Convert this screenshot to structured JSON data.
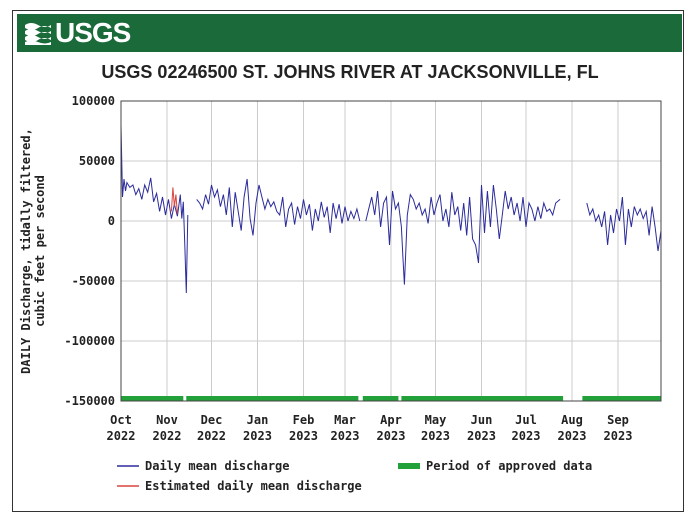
{
  "header": {
    "logo_text": "USGS",
    "banner_color": "#1b6a3a"
  },
  "chart_data": {
    "type": "line",
    "title": "USGS 02246500 ST. JOHNS RIVER AT JACKSONVILLE, FL",
    "ylabel_line1": "DAILY Discharge, tidally filtered,",
    "ylabel_line2": "cubic feet per second",
    "ylim": [
      -150000,
      100000
    ],
    "xlim": [
      "2022-10-01",
      "2023-09-30"
    ],
    "y_ticks": [
      {
        "value": 100000,
        "label": "100000"
      },
      {
        "value": 50000,
        "label": "50000"
      },
      {
        "value": 0,
        "label": "0"
      },
      {
        "value": -50000,
        "label": "-50000"
      },
      {
        "value": -100000,
        "label": "-100000"
      },
      {
        "value": -150000,
        "label": "-150000"
      }
    ],
    "x_ticks": [
      {
        "date": "2022-10-01",
        "month": "Oct",
        "year": "2022"
      },
      {
        "date": "2022-11-01",
        "month": "Nov",
        "year": "2022"
      },
      {
        "date": "2022-12-01",
        "month": "Dec",
        "year": "2022"
      },
      {
        "date": "2023-01-01",
        "month": "Jan",
        "year": "2023"
      },
      {
        "date": "2023-02-01",
        "month": "Feb",
        "year": "2023"
      },
      {
        "date": "2023-03-01",
        "month": "Mar",
        "year": "2023"
      },
      {
        "date": "2023-04-01",
        "month": "Apr",
        "year": "2023"
      },
      {
        "date": "2023-05-01",
        "month": "May",
        "year": "2023"
      },
      {
        "date": "2023-06-01",
        "month": "Jun",
        "year": "2023"
      },
      {
        "date": "2023-07-01",
        "month": "Jul",
        "year": "2023"
      },
      {
        "date": "2023-08-01",
        "month": "Aug",
        "year": "2023"
      },
      {
        "date": "2023-09-01",
        "month": "Sep",
        "year": "2023"
      }
    ],
    "grid": true,
    "colors": {
      "daily": "#2b2b9c",
      "estimated": "#d9453f",
      "approved": "#22a03a",
      "grid": "#cccccc"
    },
    "legend": {
      "placement": "bottom",
      "items": [
        {
          "key": "daily",
          "label": "Daily mean discharge"
        },
        {
          "key": "estimated",
          "label": "Estimated daily mean discharge"
        },
        {
          "key": "approved",
          "label": "Period of approved data"
        }
      ]
    },
    "series": [
      {
        "key": "daily",
        "segments": [
          [
            [
              "2022-10-01",
              80000
            ],
            [
              "2022-10-02",
              20000
            ],
            [
              "2022-10-03",
              35000
            ],
            [
              "2022-10-04",
              25000
            ],
            [
              "2022-10-05",
              32000
            ],
            [
              "2022-10-07",
              28000
            ],
            [
              "2022-10-09",
              30000
            ],
            [
              "2022-10-11",
              22000
            ],
            [
              "2022-10-13",
              27000
            ],
            [
              "2022-10-15",
              18000
            ],
            [
              "2022-10-17",
              30000
            ],
            [
              "2022-10-19",
              24000
            ],
            [
              "2022-10-21",
              36000
            ],
            [
              "2022-10-23",
              16000
            ],
            [
              "2022-10-25",
              23000
            ],
            [
              "2022-10-27",
              8000
            ],
            [
              "2022-10-29",
              20000
            ],
            [
              "2022-10-31",
              5000
            ],
            [
              "2022-11-02",
              18000
            ],
            [
              "2022-11-04",
              2000
            ],
            [
              "2022-11-06",
              14000
            ],
            [
              "2022-11-08",
              4000
            ],
            [
              "2022-11-10",
              22000
            ],
            [
              "2022-11-11",
              2000
            ],
            [
              "2022-11-12",
              16000
            ],
            [
              "2022-11-13",
              -20000
            ],
            [
              "2022-11-14",
              -60000
            ],
            [
              "2022-11-15",
              5000
            ]
          ],
          [
            [
              "2022-11-21",
              18000
            ],
            [
              "2022-11-23",
              15000
            ],
            [
              "2022-11-25",
              10000
            ],
            [
              "2022-11-27",
              22000
            ],
            [
              "2022-11-29",
              14000
            ],
            [
              "2022-12-01",
              30000
            ],
            [
              "2022-12-03",
              20000
            ],
            [
              "2022-12-05",
              26000
            ],
            [
              "2022-12-07",
              12000
            ],
            [
              "2022-12-09",
              22000
            ],
            [
              "2022-12-11",
              5000
            ],
            [
              "2022-12-13",
              28000
            ],
            [
              "2022-12-15",
              -5000
            ],
            [
              "2022-12-17",
              24000
            ],
            [
              "2022-12-19",
              8000
            ],
            [
              "2022-12-21",
              -8000
            ],
            [
              "2022-12-23",
              20000
            ],
            [
              "2022-12-25",
              35000
            ],
            [
              "2022-12-27",
              2000
            ],
            [
              "2022-12-29",
              -12000
            ],
            [
              "2022-12-31",
              15000
            ],
            [
              "2023-01-02",
              30000
            ],
            [
              "2023-01-04",
              20000
            ],
            [
              "2023-01-06",
              10000
            ],
            [
              "2023-01-08",
              18000
            ],
            [
              "2023-01-10",
              12000
            ],
            [
              "2023-01-12",
              16000
            ],
            [
              "2023-01-14",
              8000
            ],
            [
              "2023-01-16",
              5000
            ],
            [
              "2023-01-18",
              20000
            ],
            [
              "2023-01-20",
              -5000
            ],
            [
              "2023-01-22",
              10000
            ],
            [
              "2023-01-24",
              15000
            ],
            [
              "2023-01-26",
              -3000
            ],
            [
              "2023-01-28",
              12000
            ],
            [
              "2023-01-30",
              2000
            ],
            [
              "2023-02-01",
              18000
            ],
            [
              "2023-02-03",
              5000
            ],
            [
              "2023-02-05",
              14000
            ],
            [
              "2023-02-07",
              -8000
            ],
            [
              "2023-02-09",
              10000
            ],
            [
              "2023-02-11",
              0
            ],
            [
              "2023-02-13",
              16000
            ],
            [
              "2023-02-15",
              3000
            ],
            [
              "2023-02-17",
              12000
            ],
            [
              "2023-02-19",
              -10000
            ],
            [
              "2023-02-21",
              15000
            ],
            [
              "2023-02-23",
              2000
            ],
            [
              "2023-02-25",
              14000
            ],
            [
              "2023-02-27",
              -2000
            ],
            [
              "2023-03-01",
              12000
            ],
            [
              "2023-03-03",
              0
            ],
            [
              "2023-03-05",
              8000
            ],
            [
              "2023-03-07",
              2000
            ],
            [
              "2023-03-09",
              10000
            ],
            [
              "2023-03-11",
              0
            ]
          ],
          [
            [
              "2023-03-15",
              0
            ],
            [
              "2023-03-17",
              10000
            ],
            [
              "2023-03-19",
              20000
            ],
            [
              "2023-03-21",
              5000
            ],
            [
              "2023-03-23",
              25000
            ],
            [
              "2023-03-25",
              -5000
            ],
            [
              "2023-03-27",
              15000
            ],
            [
              "2023-03-29",
              20000
            ],
            [
              "2023-03-31",
              -20000
            ],
            [
              "2023-04-02",
              25000
            ],
            [
              "2023-04-04",
              10000
            ],
            [
              "2023-04-06",
              15000
            ],
            [
              "2023-04-08",
              -5000
            ],
            [
              "2023-04-09",
              -30000
            ],
            [
              "2023-04-10",
              -53000
            ],
            [
              "2023-04-12",
              5000
            ],
            [
              "2023-04-14",
              22000
            ],
            [
              "2023-04-16",
              18000
            ],
            [
              "2023-04-18",
              10000
            ],
            [
              "2023-04-20",
              15000
            ],
            [
              "2023-04-22",
              5000
            ],
            [
              "2023-04-24",
              10000
            ],
            [
              "2023-04-26",
              -2000
            ],
            [
              "2023-04-28",
              20000
            ],
            [
              "2023-04-30",
              5000
            ],
            [
              "2023-05-02",
              15000
            ],
            [
              "2023-05-04",
              22000
            ],
            [
              "2023-05-06",
              0
            ],
            [
              "2023-05-08",
              10000
            ],
            [
              "2023-05-10",
              -5000
            ],
            [
              "2023-05-12",
              24000
            ],
            [
              "2023-05-14",
              5000
            ],
            [
              "2023-05-16",
              12000
            ],
            [
              "2023-05-18",
              -8000
            ],
            [
              "2023-05-20",
              15000
            ],
            [
              "2023-05-22",
              -12000
            ],
            [
              "2023-05-24",
              20000
            ],
            [
              "2023-05-26",
              -15000
            ],
            [
              "2023-05-28",
              -20000
            ],
            [
              "2023-05-30",
              -35000
            ],
            [
              "2023-06-01",
              30000
            ],
            [
              "2023-06-03",
              -10000
            ],
            [
              "2023-06-05",
              25000
            ],
            [
              "2023-06-07",
              -5000
            ],
            [
              "2023-06-09",
              30000
            ],
            [
              "2023-06-11",
              10000
            ],
            [
              "2023-06-13",
              -15000
            ],
            [
              "2023-06-15",
              5000
            ],
            [
              "2023-06-17",
              25000
            ],
            [
              "2023-06-19",
              10000
            ],
            [
              "2023-06-21",
              20000
            ],
            [
              "2023-06-23",
              5000
            ],
            [
              "2023-06-25",
              15000
            ],
            [
              "2023-06-27",
              0
            ],
            [
              "2023-06-29",
              20000
            ],
            [
              "2023-07-01",
              -5000
            ],
            [
              "2023-07-03",
              15000
            ],
            [
              "2023-07-05",
              10000
            ],
            [
              "2023-07-07",
              0
            ],
            [
              "2023-07-09",
              12000
            ],
            [
              "2023-07-11",
              2000
            ],
            [
              "2023-07-13",
              15000
            ],
            [
              "2023-07-15",
              8000
            ],
            [
              "2023-07-17",
              10000
            ],
            [
              "2023-07-19",
              5000
            ],
            [
              "2023-07-21",
              15000
            ],
            [
              "2023-07-24",
              18000
            ]
          ],
          [
            [
              "2023-08-11",
              15000
            ],
            [
              "2023-08-13",
              5000
            ],
            [
              "2023-08-15",
              10000
            ],
            [
              "2023-08-17",
              0
            ],
            [
              "2023-08-19",
              5000
            ],
            [
              "2023-08-21",
              -5000
            ],
            [
              "2023-08-23",
              8000
            ],
            [
              "2023-08-25",
              -20000
            ],
            [
              "2023-08-27",
              5000
            ],
            [
              "2023-08-29",
              -10000
            ],
            [
              "2023-08-31",
              10000
            ],
            [
              "2023-09-02",
              0
            ],
            [
              "2023-09-04",
              20000
            ],
            [
              "2023-09-06",
              -20000
            ],
            [
              "2023-09-08",
              10000
            ],
            [
              "2023-09-10",
              -5000
            ],
            [
              "2023-09-12",
              12000
            ],
            [
              "2023-09-14",
              5000
            ],
            [
              "2023-09-16",
              10000
            ],
            [
              "2023-09-18",
              2000
            ],
            [
              "2023-09-20",
              8000
            ],
            [
              "2023-09-22",
              -12000
            ],
            [
              "2023-09-24",
              12000
            ],
            [
              "2023-09-26",
              -5000
            ],
            [
              "2023-09-28",
              -25000
            ],
            [
              "2023-09-30",
              -8000
            ]
          ]
        ]
      },
      {
        "key": "estimated",
        "segments": [
          [
            [
              "2022-11-04",
              8000
            ],
            [
              "2022-11-05",
              28000
            ],
            [
              "2022-11-06",
              12000
            ],
            [
              "2022-11-07",
              22000
            ],
            [
              "2022-11-08",
              6000
            ]
          ]
        ]
      }
    ],
    "approved_periods": [
      [
        "2022-10-01",
        "2022-11-12"
      ],
      [
        "2022-11-14",
        "2023-03-10"
      ],
      [
        "2023-03-13",
        "2023-04-06"
      ],
      [
        "2023-04-08",
        "2023-07-26"
      ],
      [
        "2023-08-08",
        "2023-09-30"
      ]
    ]
  }
}
